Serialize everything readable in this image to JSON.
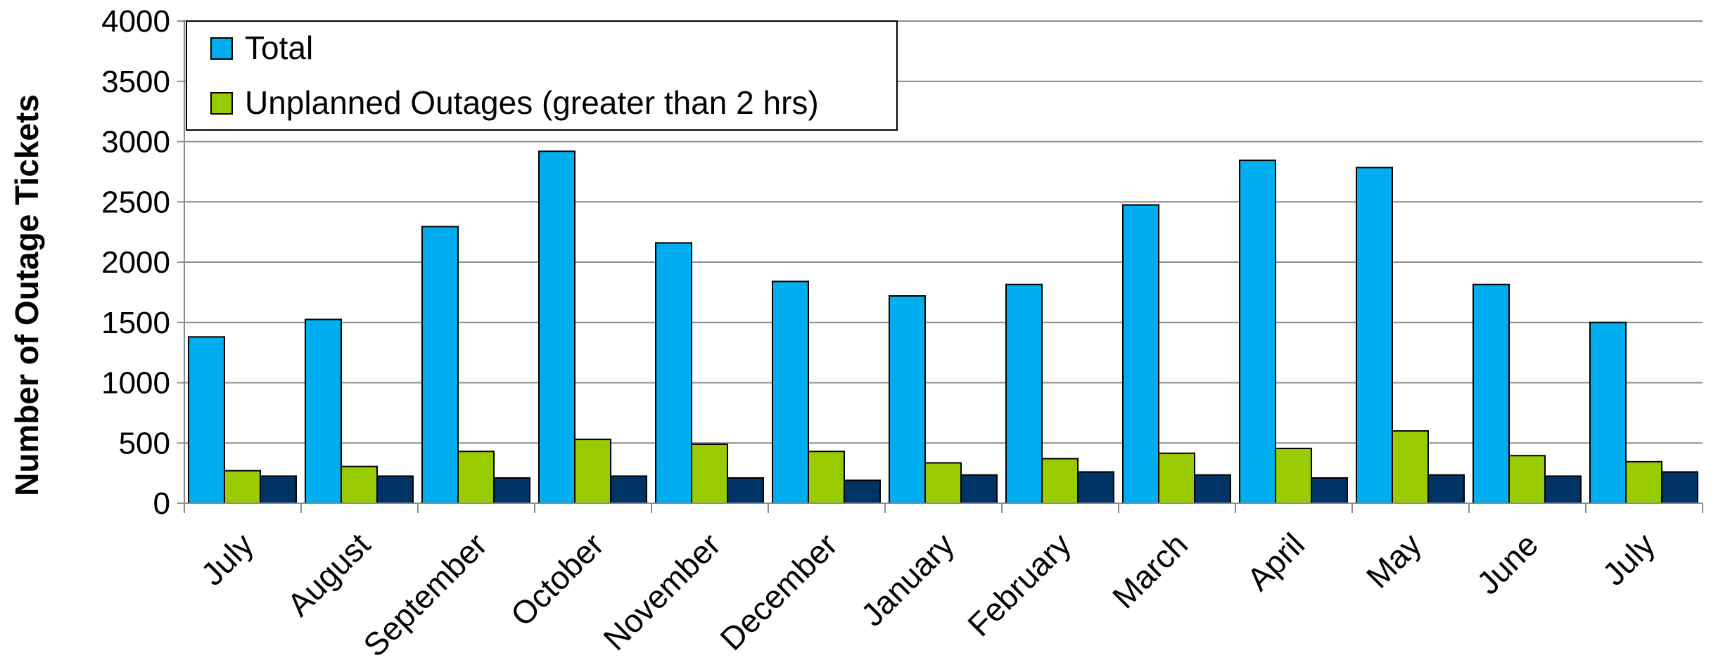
{
  "chart_data": {
    "type": "bar",
    "title": "",
    "xlabel": "",
    "ylabel": "Number of Outage Tickets",
    "ylim": [
      0,
      4000
    ],
    "yticks": [
      0,
      500,
      1000,
      1500,
      2000,
      2500,
      3000,
      3500,
      4000
    ],
    "grid": "horizontal",
    "legend_position": "top-left",
    "categories": [
      "July",
      "August",
      "September",
      "October",
      "November",
      "December",
      "January",
      "February",
      "March",
      "April",
      "May",
      "June",
      "July"
    ],
    "series": [
      {
        "name": "Total",
        "color": "#00AEEF",
        "values": [
          1380,
          1525,
          2295,
          2920,
          2160,
          1840,
          1720,
          1815,
          2475,
          2845,
          2785,
          1815,
          1500
        ]
      },
      {
        "name": "Unplanned Outages (greater than 2 hrs)",
        "color": "#99CC00",
        "values": [
          270,
          305,
          430,
          530,
          490,
          430,
          335,
          370,
          415,
          455,
          600,
          395,
          345
        ]
      },
      {
        "name": "",
        "color": "#003366",
        "values": [
          225,
          225,
          210,
          225,
          210,
          190,
          235,
          260,
          235,
          210,
          235,
          225,
          260
        ]
      }
    ]
  }
}
